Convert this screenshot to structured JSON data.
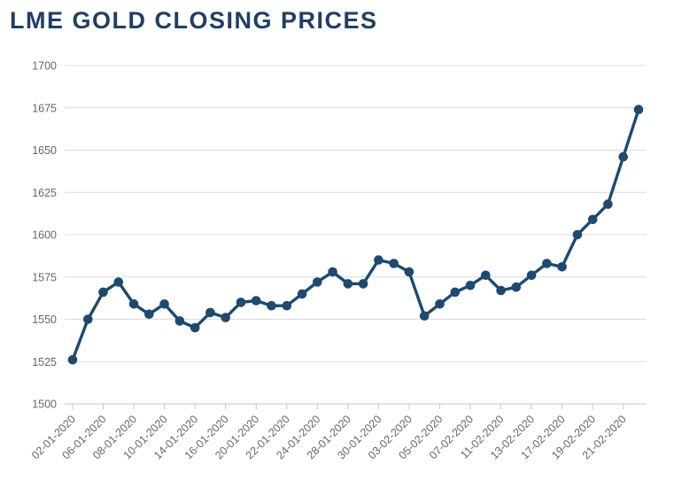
{
  "title": "LME GOLD CLOSING PRICES",
  "title_color": "#1e3f66",
  "chart_data": {
    "type": "line",
    "title": "LME GOLD CLOSING PRICES",
    "xlabel": "",
    "ylabel": "",
    "ylim": [
      1500,
      1700
    ],
    "y_ticks": [
      1500,
      1525,
      1550,
      1575,
      1600,
      1625,
      1650,
      1675,
      1700
    ],
    "grid": "horizontal",
    "legend": "none",
    "x_tick_labels": [
      "02-01-2020",
      "06-01-2020",
      "08-01-2020",
      "10-01-2020",
      "14-01-2020",
      "16-01-2020",
      "20-01-2020",
      "22-01-2020",
      "24-01-2020",
      "28-01-2020",
      "30-01-2020",
      "03-02-2020",
      "05-02-2020",
      "07-02-2020",
      "11-02-2020",
      "13-02-2020",
      "17-02-2020",
      "19-02-2020",
      "21-02-2020"
    ],
    "tick_point_indices": [
      0,
      2,
      4,
      6,
      8,
      10,
      12,
      14,
      16,
      18,
      20,
      22,
      24,
      26,
      28,
      30,
      32,
      34,
      36
    ],
    "series": [
      {
        "name": "LME Gold Closing Price",
        "values": [
          1526,
          1550,
          1566,
          1572,
          1559,
          1553,
          1559,
          1549,
          1545,
          1554,
          1551,
          1560,
          1561,
          1558,
          1558,
          1565,
          1572,
          1578,
          1571,
          1571,
          1585,
          1583,
          1578,
          1552,
          1559,
          1566,
          1570,
          1576,
          1567,
          1569,
          1576,
          1583,
          1581,
          1600,
          1609,
          1618,
          1646,
          1674
        ]
      }
    ],
    "line_color": "#1c4a70",
    "marker": "circle",
    "grid_color": "#dcdcdc",
    "axis_color": "#c3c3c3",
    "tick_label_color": "#666666"
  }
}
